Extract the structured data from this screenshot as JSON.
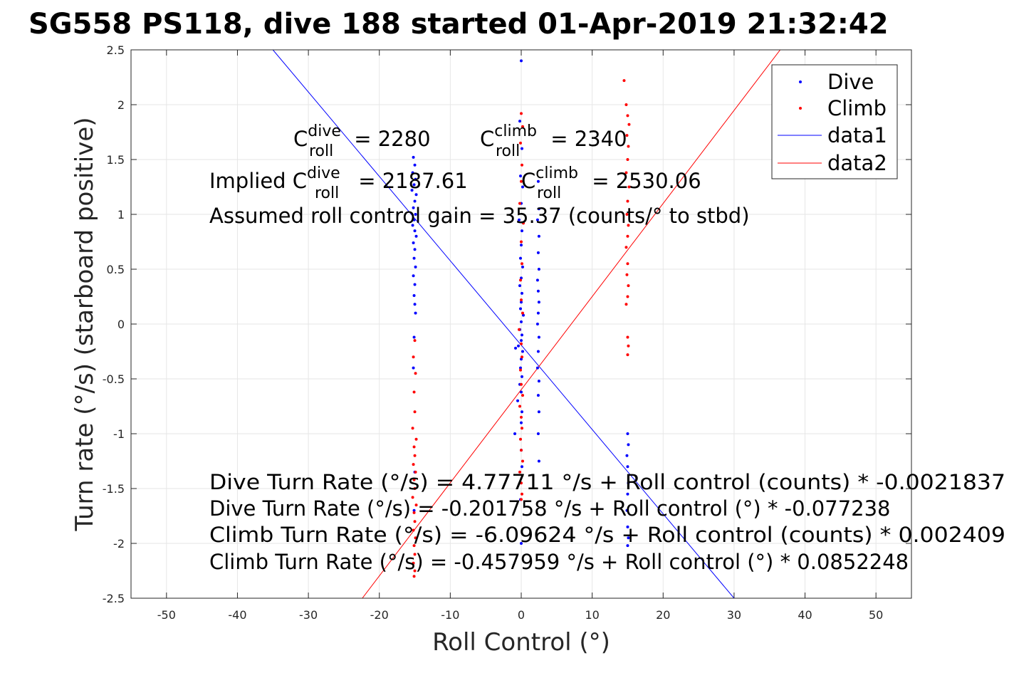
{
  "chart_data": {
    "type": "scatter",
    "title": "SG558 PS118, dive 188 started 01-Apr-2019 21:32:42",
    "xlabel": "Roll Control (°)",
    "ylabel": "Turn rate (°/s) (starboard positive)",
    "xlim": [
      -55,
      55
    ],
    "ylim": [
      -2.5,
      2.5
    ],
    "xticks": [
      -50,
      -40,
      -30,
      -20,
      -10,
      0,
      10,
      20,
      30,
      40,
      50
    ],
    "yticks": [
      -2.5,
      -2,
      -1.5,
      -1,
      -0.5,
      0,
      0.5,
      1,
      1.5,
      2,
      2.5
    ],
    "xtick_labels": [
      "-50",
      "-40",
      "-30",
      "-20",
      "-10",
      "0",
      "10",
      "20",
      "30",
      "40",
      "50"
    ],
    "ytick_labels": [
      "-2.5",
      "-2",
      "-1.5",
      "-1",
      "-0.5",
      "0",
      "0.5",
      "1",
      "1.5",
      "2",
      "2.5"
    ],
    "grid": true,
    "legend_position": "top-right",
    "series": [
      {
        "name": "Dive",
        "kind": "points",
        "color": "#0000ff",
        "points": [
          [
            -15.2,
            1.52
          ],
          [
            -15.0,
            1.45
          ],
          [
            -15.3,
            1.38
          ],
          [
            -14.9,
            1.32
          ],
          [
            -15.1,
            1.27
          ],
          [
            -15.4,
            1.22
          ],
          [
            -14.8,
            1.18
          ],
          [
            -15.0,
            1.12
          ],
          [
            -15.2,
            1.06
          ],
          [
            -14.9,
            1.0
          ],
          [
            -15.1,
            0.95
          ],
          [
            -15.3,
            0.9
          ],
          [
            -15.0,
            0.85
          ],
          [
            -14.8,
            0.8
          ],
          [
            -15.2,
            0.74
          ],
          [
            -15.0,
            0.68
          ],
          [
            -15.1,
            0.6
          ],
          [
            -14.9,
            0.52
          ],
          [
            -15.2,
            0.44
          ],
          [
            -15.0,
            0.36
          ],
          [
            -15.1,
            0.26
          ],
          [
            -15.0,
            0.18
          ],
          [
            -14.9,
            0.1
          ],
          [
            -15.1,
            -0.12
          ],
          [
            -15.2,
            -0.4
          ],
          [
            -15.0,
            -1.35
          ],
          [
            -15.1,
            -1.7
          ],
          [
            0.0,
            2.4
          ],
          [
            -0.2,
            1.85
          ],
          [
            0.1,
            1.6
          ],
          [
            -0.1,
            1.35
          ],
          [
            0.2,
            1.25
          ],
          [
            0.0,
            1.1
          ],
          [
            -0.3,
            0.95
          ],
          [
            0.1,
            0.85
          ],
          [
            0.0,
            0.72
          ],
          [
            -0.1,
            0.6
          ],
          [
            0.2,
            0.52
          ],
          [
            0.0,
            0.42
          ],
          [
            -0.2,
            0.35
          ],
          [
            0.1,
            0.28
          ],
          [
            0.0,
            0.2
          ],
          [
            -0.1,
            0.14
          ],
          [
            0.3,
            0.08
          ],
          [
            0.0,
            0.02
          ],
          [
            -0.2,
            -0.05
          ],
          [
            0.1,
            -0.1
          ],
          [
            0.0,
            -0.15
          ],
          [
            -0.4,
            -0.2
          ],
          [
            0.2,
            -0.25
          ],
          [
            -0.8,
            -0.22
          ],
          [
            0.0,
            -0.32
          ],
          [
            -0.1,
            -0.4
          ],
          [
            0.1,
            -0.48
          ],
          [
            -0.2,
            -0.55
          ],
          [
            0.0,
            -0.62
          ],
          [
            -0.5,
            -0.7
          ],
          [
            0.1,
            -0.8
          ],
          [
            0.0,
            -0.9
          ],
          [
            -0.9,
            -1.0
          ],
          [
            0.0,
            -1.15
          ],
          [
            0.1,
            -1.3
          ],
          [
            -0.1,
            -1.6
          ],
          [
            0.0,
            -2.0
          ],
          [
            2.4,
            1.3
          ],
          [
            2.5,
            1.05
          ],
          [
            2.3,
            0.95
          ],
          [
            2.5,
            0.8
          ],
          [
            2.4,
            0.65
          ],
          [
            2.5,
            0.5
          ],
          [
            2.3,
            0.4
          ],
          [
            2.4,
            0.3
          ],
          [
            2.5,
            0.2
          ],
          [
            2.4,
            0.1
          ],
          [
            2.3,
            0.0
          ],
          [
            2.5,
            -0.12
          ],
          [
            2.4,
            -0.25
          ],
          [
            2.3,
            -0.4
          ],
          [
            2.5,
            -0.52
          ],
          [
            2.4,
            -0.65
          ],
          [
            2.5,
            -0.8
          ],
          [
            2.4,
            -1.0
          ],
          [
            2.5,
            -1.25
          ],
          [
            15.0,
            -1.0
          ],
          [
            15.1,
            -1.1
          ],
          [
            14.9,
            -1.2
          ],
          [
            15.0,
            -1.3
          ],
          [
            15.1,
            -1.45
          ],
          [
            15.0,
            -1.55
          ],
          [
            14.9,
            -1.7
          ],
          [
            15.0,
            -1.85
          ],
          [
            15.1,
            -1.95
          ],
          [
            15.0,
            -2.02
          ]
        ]
      },
      {
        "name": "Climb",
        "kind": "points",
        "color": "#ff0000",
        "points": [
          [
            -15.0,
            -0.15
          ],
          [
            -15.2,
            -0.3
          ],
          [
            -14.9,
            -0.45
          ],
          [
            -15.1,
            -0.62
          ],
          [
            -15.0,
            -0.8
          ],
          [
            -15.3,
            -0.95
          ],
          [
            -14.8,
            -1.05
          ],
          [
            -15.1,
            -1.12
          ],
          [
            -15.0,
            -1.2
          ],
          [
            -15.2,
            -1.28
          ],
          [
            -14.9,
            -1.35
          ],
          [
            -15.1,
            -1.42
          ],
          [
            -15.0,
            -1.5
          ],
          [
            -15.3,
            -1.58
          ],
          [
            -14.8,
            -1.65
          ],
          [
            -15.1,
            -1.72
          ],
          [
            -15.0,
            -1.8
          ],
          [
            -15.2,
            -1.88
          ],
          [
            -14.9,
            -1.95
          ],
          [
            -15.1,
            -2.02
          ],
          [
            -15.0,
            -2.1
          ],
          [
            -15.2,
            -2.18
          ],
          [
            -15.0,
            -2.25
          ],
          [
            -15.1,
            -2.3
          ],
          [
            0.0,
            1.92
          ],
          [
            0.2,
            1.8
          ],
          [
            -0.1,
            1.65
          ],
          [
            0.1,
            1.45
          ],
          [
            0.0,
            1.3
          ],
          [
            -0.2,
            1.1
          ],
          [
            0.3,
            0.92
          ],
          [
            0.0,
            0.75
          ],
          [
            0.1,
            0.55
          ],
          [
            -0.1,
            0.4
          ],
          [
            0.0,
            0.22
          ],
          [
            0.2,
            0.1
          ],
          [
            -0.3,
            -0.05
          ],
          [
            0.0,
            -0.18
          ],
          [
            0.1,
            -0.3
          ],
          [
            -0.1,
            -0.42
          ],
          [
            0.0,
            -0.55
          ],
          [
            0.2,
            -0.65
          ],
          [
            -0.2,
            -0.75
          ],
          [
            0.0,
            -0.85
          ],
          [
            0.1,
            -0.95
          ],
          [
            -0.1,
            -1.05
          ],
          [
            0.0,
            -1.15
          ],
          [
            0.2,
            -1.25
          ],
          [
            -0.2,
            -1.35
          ],
          [
            0.0,
            -1.45
          ],
          [
            0.1,
            -1.55
          ],
          [
            0.0,
            -1.6
          ],
          [
            14.5,
            2.22
          ],
          [
            14.8,
            2.0
          ],
          [
            15.0,
            1.9
          ],
          [
            15.2,
            1.82
          ],
          [
            14.9,
            1.72
          ],
          [
            15.1,
            1.62
          ],
          [
            15.0,
            1.5
          ],
          [
            14.8,
            1.38
          ],
          [
            15.2,
            1.25
          ],
          [
            15.0,
            1.12
          ],
          [
            14.9,
            1.0
          ],
          [
            15.1,
            0.9
          ],
          [
            15.0,
            0.8
          ],
          [
            14.8,
            0.7
          ],
          [
            15.0,
            0.55
          ],
          [
            14.9,
            0.45
          ],
          [
            15.1,
            0.35
          ],
          [
            15.0,
            0.25
          ],
          [
            14.8,
            0.18
          ],
          [
            15.0,
            -0.12
          ],
          [
            15.1,
            -0.2
          ],
          [
            15.0,
            -0.28
          ]
        ]
      },
      {
        "name": "data1",
        "kind": "line",
        "color": "#0000ff",
        "points": [
          [
            -35.0,
            2.5
          ],
          [
            30.0,
            -2.5
          ]
        ]
      },
      {
        "name": "data2",
        "kind": "line",
        "color": "#ff0000",
        "points": [
          [
            -22.4,
            -2.5
          ],
          [
            36.5,
            2.5
          ]
        ]
      }
    ],
    "annotations": {
      "c_dive_base": "C",
      "c_dive_sup": "dive",
      "c_dive_sub": "roll",
      "c_dive_value": " = 2280",
      "c_climb_base": "C",
      "c_climb_sup": "climb",
      "c_climb_sub": "roll",
      "c_climb_value": " = 2340",
      "implied_prefix": "Implied C",
      "implied_dive_sup": "dive",
      "implied_dive_sub": "roll",
      "implied_dive_value": " = 2187.61",
      "implied_climb_base": "C",
      "implied_climb_sup": "climb",
      "implied_climb_sub": "roll",
      "implied_climb_value": " = 2530.06",
      "gain": "Assumed roll control gain = 35.37 (counts/° to stbd)",
      "fit1": "Dive Turn Rate (°/s) = 4.77711 °/s + Roll control (counts) * -0.0021837",
      "fit2": "Dive Turn Rate (°/s) = -0.201758 °/s + Roll control (°) * -0.077238",
      "fit3": "Climb Turn Rate (°/s) = -6.09624 °/s + Roll control (counts) * 0.002409",
      "fit4": "Climb Turn Rate (°/s) = -0.457959 °/s + Roll control (°) * 0.0852248"
    }
  }
}
